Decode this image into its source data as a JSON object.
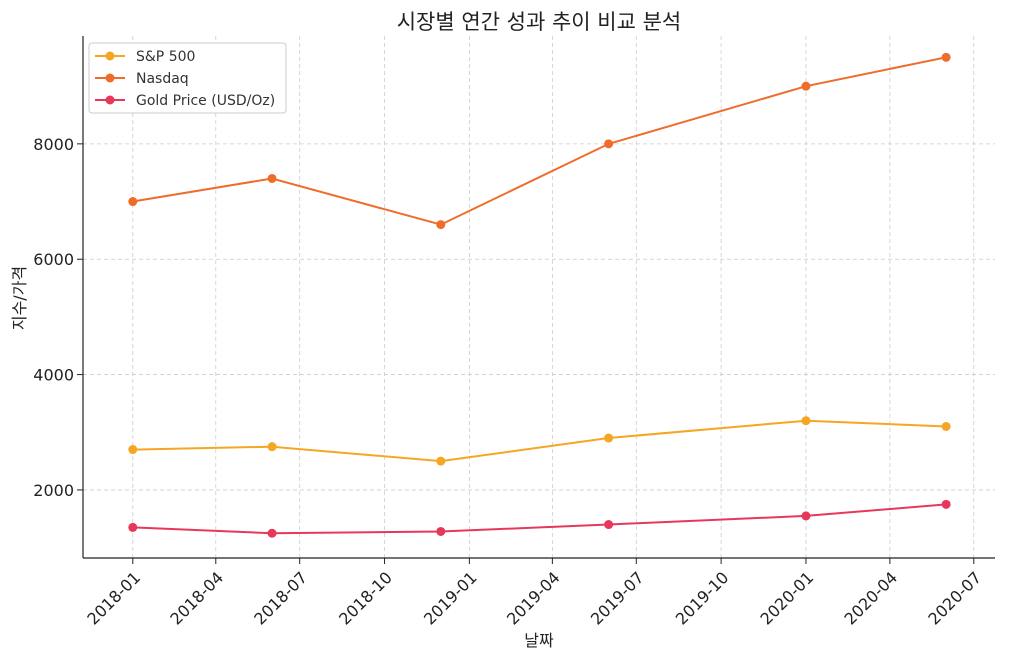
{
  "chart_data": {
    "type": "line",
    "title": "시장별 연간 성과 추이 비교 분석",
    "xlabel": "날짜",
    "ylabel": "지수/가격",
    "x": [
      "2018-01-01",
      "2018-06-01",
      "2018-12-01",
      "2019-06-01",
      "2020-01-01",
      "2020-06-01"
    ],
    "x_ticks": [
      "2018-01",
      "2018-04",
      "2018-07",
      "2018-10",
      "2019-01",
      "2019-04",
      "2019-07",
      "2019-10",
      "2020-01",
      "2020-04",
      "2020-07"
    ],
    "xlim": [
      "2017-11-08",
      "2020-07-24"
    ],
    "y_ticks": [
      2000,
      4000,
      6000,
      8000
    ],
    "ylim": [
      820,
      9870
    ],
    "grid": true,
    "legend_position": "top-left",
    "series": [
      {
        "name": "S&P 500",
        "color": "#f5a623",
        "values": [
          2700,
          2750,
          2500,
          2900,
          3200,
          3100
        ]
      },
      {
        "name": "Nasdaq",
        "color": "#ef6c2a",
        "values": [
          7000,
          7400,
          6600,
          8000,
          9000,
          9500
        ]
      },
      {
        "name": "Gold Price (USD/Oz)",
        "color": "#e8385a",
        "values": [
          1350,
          1250,
          1280,
          1400,
          1550,
          1750
        ]
      }
    ]
  }
}
